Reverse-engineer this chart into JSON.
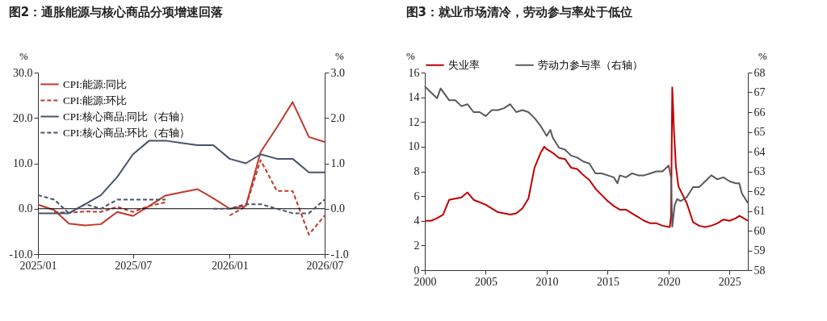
{
  "chart_data": [
    {
      "type": "line",
      "title": "图2：通胀能源与核心商品分项增速回落",
      "ylabel": "%",
      "y2label": "%",
      "x": [
        "2025-01",
        "2025-02",
        "2025-03",
        "2025-04",
        "2025-05",
        "2025-06",
        "2025-07",
        "2025-08",
        "2025-09",
        "2025-10",
        "2025-11",
        "2025-12",
        "2026-01",
        "2026-02",
        "2026-03",
        "2026-04",
        "2026-05",
        "2026-06",
        "2026-07"
      ],
      "xlim": [
        "2025-01",
        "2026-07"
      ],
      "xticks": [
        {
          "value": "2025-01",
          "label": "2025/01"
        },
        {
          "value": "2025-07",
          "label": "2025/07"
        },
        {
          "value": "2026-01",
          "label": "2026/01"
        },
        {
          "value": "2026-07",
          "label": "2026/07"
        }
      ],
      "ylim": [
        -10,
        30
      ],
      "yticks": [
        {
          "value": -10,
          "label": "-10.0"
        },
        {
          "value": 0,
          "label": "0.0"
        },
        {
          "value": 10,
          "label": "10.0"
        },
        {
          "value": 20,
          "label": "20.0"
        },
        {
          "value": 30,
          "label": "30.0"
        }
      ],
      "y2lim": [
        -1,
        3
      ],
      "y2ticks": [
        {
          "value": -1,
          "label": "-1.0"
        },
        {
          "value": 0,
          "label": "0.0"
        },
        {
          "value": 1,
          "label": "1.0"
        },
        {
          "value": 2,
          "label": "2.0"
        },
        {
          "value": 3,
          "label": "3.0"
        }
      ],
      "grid": false,
      "legend": "top left",
      "ref_lines": [
        {
          "axis": "y",
          "value": 0,
          "color": "#000000"
        }
      ],
      "series": [
        {
          "name": "CPI:能源:同比",
          "color": "#c0392b",
          "line_style": "solid",
          "values": [
            0.9,
            -0.3,
            -3.3,
            -3.7,
            -3.4,
            -0.7,
            -1.6,
            0.6,
            2.9,
            3.6,
            4.3,
            2.3,
            0.0,
            0.6,
            12.5,
            17.9,
            23.5,
            15.8,
            14.7
          ]
        },
        {
          "name": "CPI:能源:环比",
          "color": "#c0392b",
          "line_style": "dashed",
          "values": [
            null,
            -0.7,
            -0.9,
            -0.6,
            -0.7,
            0.4,
            -0.7,
            0.6,
            1.4,
            null,
            null,
            null,
            -1.5,
            0.5,
            10.7,
            3.9,
            3.9,
            -5.7,
            -1.5
          ]
        },
        {
          "name": "CPI:核心商品:同比（右轴）",
          "color": "#44546a",
          "line_style": "solid",
          "axis": "y2",
          "values": [
            -0.1,
            -0.1,
            -0.1,
            0.1,
            0.3,
            0.7,
            1.2,
            1.5,
            1.5,
            1.45,
            1.4,
            1.4,
            1.1,
            1.0,
            1.2,
            1.1,
            1.1,
            0.8,
            0.8
          ]
        },
        {
          "name": "CPI:核心商品:环比（右轴）",
          "color": "#44546a",
          "line_style": "dashed",
          "axis": "y2",
          "values": [
            0.3,
            0.2,
            -0.1,
            0.1,
            0.0,
            0.2,
            0.2,
            0.2,
            0.2,
            null,
            null,
            0.0,
            0.0,
            0.1,
            0.1,
            0.0,
            -0.1,
            -0.1,
            0.2
          ]
        }
      ]
    },
    {
      "type": "line",
      "title": "图3：就业市场清冷，劳动参与率处于低位",
      "ylabel": "%",
      "y2label": "%",
      "xlim": [
        2000,
        2026.5
      ],
      "xticks": [
        2000,
        2005,
        2010,
        2015,
        2020,
        2025
      ],
      "ylim": [
        0,
        16
      ],
      "yticks": [
        0,
        2,
        4,
        6,
        8,
        10,
        12,
        14,
        16
      ],
      "y2lim": [
        58,
        68
      ],
      "y2ticks": [
        58,
        59,
        60,
        61,
        62,
        63,
        64,
        65,
        66,
        67,
        68
      ],
      "grid": false,
      "legend": "top",
      "series": [
        {
          "name": "失业率",
          "color": "#c00000",
          "line_style": "solid",
          "x": [
            2000,
            2000.5,
            2001,
            2001.5,
            2002,
            2002.5,
            2003,
            2003.5,
            2004,
            2005,
            2006,
            2007,
            2007.5,
            2008,
            2008.5,
            2009,
            2009.5,
            2009.8,
            2010,
            2010.5,
            2011,
            2011.5,
            2012,
            2012.5,
            2013,
            2013.5,
            2014,
            2014.5,
            2015,
            2015.5,
            2016,
            2016.5,
            2017,
            2017.5,
            2018,
            2018.5,
            2019,
            2019.5,
            2020.1,
            2020.2,
            2020.3,
            2020.45,
            2020.6,
            2020.8,
            2021,
            2021.5,
            2022,
            2022.5,
            2023,
            2023.5,
            2024,
            2024.5,
            2025,
            2025.5,
            2025.8,
            2026,
            2026.5
          ],
          "values": [
            4.0,
            4.0,
            4.2,
            4.5,
            5.7,
            5.8,
            5.9,
            6.3,
            5.7,
            5.3,
            4.7,
            4.5,
            4.6,
            5.0,
            5.8,
            8.3,
            9.5,
            10.0,
            9.8,
            9.5,
            9.1,
            9.0,
            8.3,
            8.2,
            7.7,
            7.3,
            6.6,
            6.1,
            5.6,
            5.2,
            4.9,
            4.9,
            4.6,
            4.3,
            4.0,
            3.8,
            3.8,
            3.6,
            3.5,
            4.4,
            14.8,
            11.1,
            8.4,
            6.8,
            6.4,
            5.4,
            3.9,
            3.6,
            3.5,
            3.6,
            3.8,
            4.1,
            4.0,
            4.2,
            4.4,
            4.3,
            4.0
          ]
        },
        {
          "name": "劳动力参与率（右轴）",
          "color": "#595959",
          "line_style": "solid",
          "axis": "y2",
          "x": [
            2000,
            2000.5,
            2001,
            2001.3,
            2002,
            2002.5,
            2003,
            2003.5,
            2004,
            2004.5,
            2005,
            2005.5,
            2006,
            2006.5,
            2007,
            2007.5,
            2008,
            2008.5,
            2009,
            2009.5,
            2010,
            2010.3,
            2010.5,
            2011,
            2011.5,
            2012,
            2012.5,
            2013,
            2013.5,
            2014,
            2014.5,
            2015,
            2015.5,
            2015.8,
            2016,
            2016.5,
            2017,
            2017.5,
            2018,
            2018.5,
            2019,
            2019.5,
            2020,
            2020.2,
            2020.3,
            2020.5,
            2020.7,
            2021,
            2021.5,
            2022,
            2022.5,
            2023,
            2023.5,
            2024,
            2024.5,
            2025,
            2025.5,
            2025.8,
            2026,
            2026.5
          ],
          "values": [
            67.3,
            67.0,
            66.7,
            67.2,
            66.6,
            66.6,
            66.3,
            66.4,
            66.0,
            66.0,
            65.8,
            66.1,
            66.1,
            66.2,
            66.4,
            66.0,
            66.1,
            66.0,
            65.7,
            65.3,
            64.8,
            65.1,
            64.7,
            64.2,
            64.1,
            63.8,
            63.7,
            63.5,
            63.4,
            62.9,
            62.9,
            62.8,
            62.7,
            62.4,
            62.8,
            62.7,
            62.9,
            62.8,
            62.8,
            62.9,
            63.0,
            63.0,
            63.3,
            62.7,
            60.2,
            61.3,
            61.6,
            61.5,
            61.7,
            62.2,
            62.2,
            62.5,
            62.8,
            62.6,
            62.7,
            62.5,
            62.4,
            62.4,
            61.9,
            61.4
          ]
        }
      ]
    }
  ]
}
